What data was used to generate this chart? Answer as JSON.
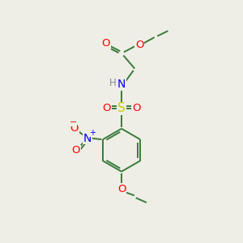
{
  "background_color": "#eeeee6",
  "bond_color": "#3a7a3a",
  "atom_colors": {
    "O": "#ff0000",
    "N": "#0000ff",
    "S": "#cccc00",
    "H": "#888899",
    "C": "#3a7a3a"
  },
  "figsize": [
    3.0,
    3.0
  ],
  "dpi": 100
}
